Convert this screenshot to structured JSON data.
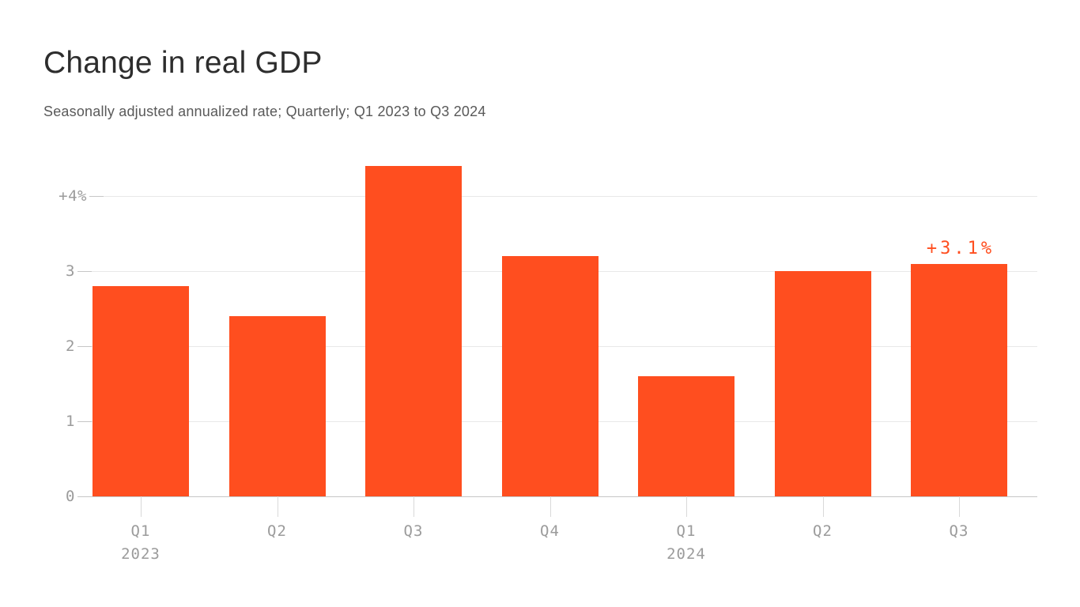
{
  "header": {
    "title": "Change in real GDP",
    "subtitle": "Seasonally adjusted annualized rate; Quarterly; Q1 2023 to Q3 2024"
  },
  "colors": {
    "accent": "#ff4e1f",
    "background": "#ffffff",
    "title_text": "#2d2d2d",
    "subtitle_text": "#595959",
    "axis_text": "#9b9b9b",
    "gridline": "#e8e8e8",
    "axis_line": "#c6c6c6"
  },
  "chart_data": {
    "type": "bar",
    "title": "Change in real GDP",
    "subtitle": "Seasonally adjusted annualized rate; Quarterly; Q1 2023 to Q3 2024",
    "categories": [
      "Q1 2023",
      "Q2 2023",
      "Q3 2023",
      "Q4 2023",
      "Q1 2024",
      "Q2 2024",
      "Q3 2024"
    ],
    "x_tick_labels": [
      "Q1",
      "Q2",
      "Q3",
      "Q4",
      "Q1",
      "Q2",
      "Q3"
    ],
    "x_year_labels": [
      {
        "index": 0,
        "label": "2023"
      },
      {
        "index": 4,
        "label": "2024"
      }
    ],
    "values": [
      2.8,
      2.4,
      4.4,
      3.2,
      1.6,
      3.0,
      3.1
    ],
    "unit": "percent (annualized rate)",
    "y_ticks": [
      {
        "value": 4,
        "label": "+4%"
      },
      {
        "value": 3,
        "label": "3"
      },
      {
        "value": 2,
        "label": "2"
      },
      {
        "value": 1,
        "label": "1"
      },
      {
        "value": 0,
        "label": "0"
      }
    ],
    "ylim": [
      0,
      4.6
    ],
    "grid": "horizontal",
    "legend": "none",
    "bar_color": "#ff4e1f",
    "last_point_label": "+3.1%"
  }
}
